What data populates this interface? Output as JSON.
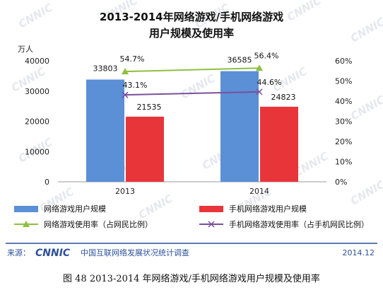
{
  "chart_data": {
    "type": "bar",
    "title_line1": "2013-2014年网络游戏/手机网络游戏",
    "title_line2": "用户规模及使用率",
    "y_left_unit": "万人",
    "categories": [
      "2013",
      "2014"
    ],
    "ylim_left": [
      0,
      40000
    ],
    "ylim_right": [
      0,
      60
    ],
    "left_ticks": [
      "0",
      "10000",
      "20000",
      "30000",
      "40000"
    ],
    "right_ticks": [
      "0%",
      "10%",
      "20%",
      "30%",
      "40%",
      "50%",
      "60%"
    ],
    "series": [
      {
        "name": "网络游戏用户规模",
        "kind": "bar",
        "axis": "left",
        "color": "#5b8fd6",
        "values": [
          33803,
          36585
        ],
        "labels": [
          "33803",
          "36585"
        ]
      },
      {
        "name": "手机网络游戏用户规模",
        "kind": "bar",
        "axis": "left",
        "color": "#e8353a",
        "values": [
          21535,
          24823
        ],
        "labels": [
          "21535",
          "24823"
        ]
      },
      {
        "name": "网络游戏使用率（占网民比例）",
        "kind": "line",
        "axis": "right",
        "color": "#8fbf3f",
        "marker": "triangle",
        "values": [
          54.7,
          56.4
        ],
        "labels": [
          "54.7%",
          "56.4%"
        ]
      },
      {
        "name": "手机网络游戏使用率（占手机网民比例）",
        "kind": "line",
        "axis": "right",
        "color": "#7a4f9e",
        "marker": "x",
        "values": [
          43.1,
          44.6
        ],
        "labels": [
          "43.1%",
          "44.6%"
        ]
      }
    ]
  },
  "footer": {
    "source_label": "来源：",
    "logo_text": "CNNIC",
    "org_name": "中国互联网络发展状况统计调查",
    "date": "2014.12"
  },
  "caption": "图  48    2013-2014 年网络游戏/手机网络游戏用户规模及使用率",
  "watermark_text": "CNNIC",
  "colors": {
    "accent_blue": "#2e4f9a",
    "footer_line": "#2e4f9a"
  }
}
